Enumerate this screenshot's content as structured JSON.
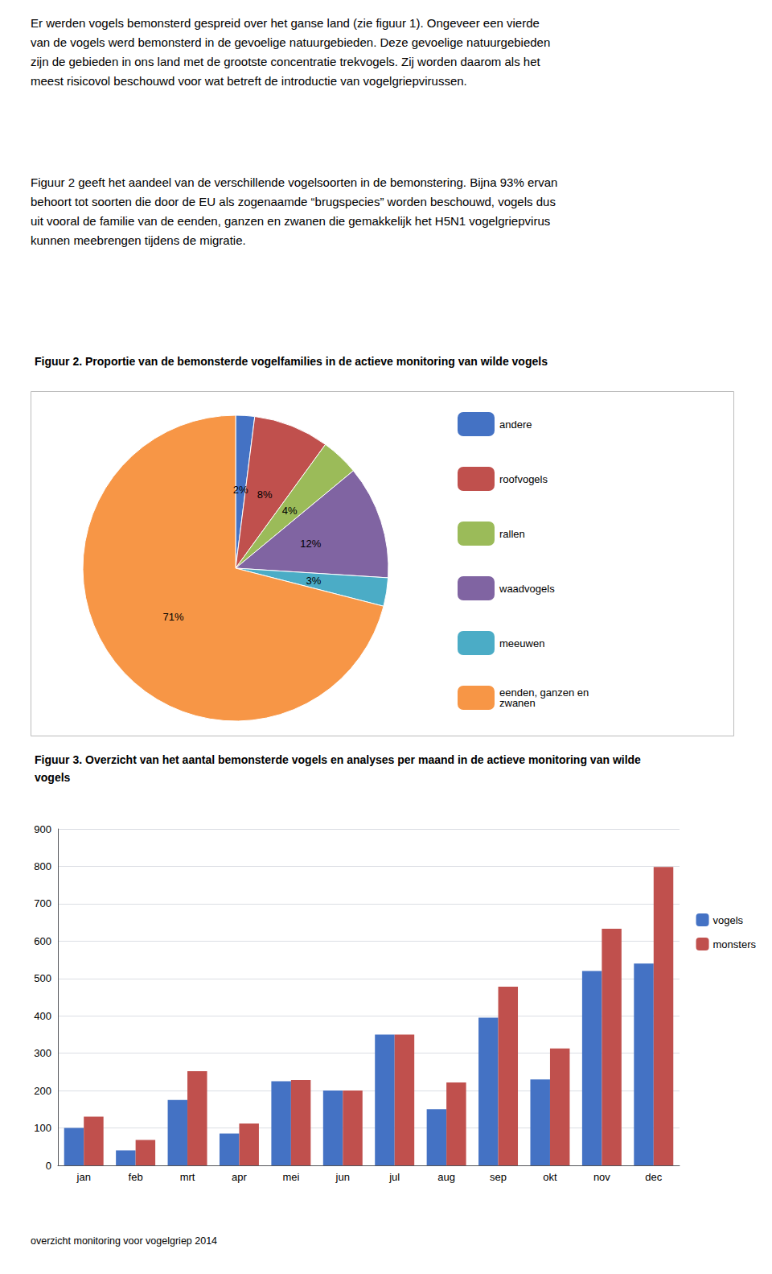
{
  "chart_data": [
    {
      "type": "pie",
      "title": "Figuur 2. Proportie van de bemonsterde vogelfamilies in de actieve monitoring van wilde vogels",
      "annotations": [
        "Er werden vogels bemonsterd gespreid over het ganse land (zie figuur 1). Ongeveer een vierde\nvan de vogels werd bemonsterd in de gevoelige natuurgebieden. Deze gevoelige natuurgebieden\nzijn de gebieden in ons land met de grootste concentratie trekvogels. Zij worden daarom als het\nmeest risicovol beschouwd voor wat betreft de introductie van vogelgriepvirussen.",
        "Figuur 2 geeft het aandeel van de verschillende vogelsoorten in de bemonstering. Bijna 93% ervan\nbehoort tot soorten die door de EU als zogenaamde “brugspecies” worden beschouwd, vogels dus\nuit vooral de familie van de eenden, ganzen en zwanen die gemakkelijk het H5N1 vogelgriepvirus\nkunnen meebrengen tijdens de migratie."
      ],
      "categories": [
        "andere",
        "roofvogels",
        "rallen",
        "waadvogels",
        "meeuwen",
        "eenden, ganzen en\nzwanen"
      ],
      "values": [
        2,
        8,
        4,
        12,
        3,
        71
      ],
      "value_labels": [
        "2%",
        "8%",
        "4%",
        "12%",
        "3%",
        "71%"
      ],
      "colors": [
        "#4472C4",
        "#C0504D",
        "#9BBB59",
        "#8064A2",
        "#4BACC6",
        "#F79646"
      ],
      "data_labels": true,
      "legend": "right"
    },
    {
      "type": "bar",
      "title": "Figuur 3. Overzicht van het aantal bemonsterde vogels en analyses per maand in de actieve monitoring van wilde\nvogels",
      "categories": [
        "jan",
        "feb",
        "mrt",
        "apr",
        "mei",
        "jun",
        "jul",
        "aug",
        "sep",
        "okt",
        "nov",
        "dec"
      ],
      "series": [
        {
          "name": "vogels",
          "color": "#4472C4",
          "values": [
            100,
            40,
            175,
            85,
            225,
            200,
            350,
            150,
            395,
            230,
            520,
            540
          ]
        },
        {
          "name": "monsters",
          "color": "#C0504D",
          "values": [
            130,
            68,
            252,
            112,
            228,
            200,
            350,
            222,
            478,
            313,
            633,
            798
          ]
        }
      ],
      "ylim": [
        0,
        900
      ],
      "yticks": [
        0,
        100,
        200,
        300,
        400,
        500,
        600,
        700,
        800,
        900
      ],
      "grid": true,
      "legend": "right",
      "annotations": [
        "overzicht monitoring voor vogelgriep 2014"
      ]
    }
  ]
}
